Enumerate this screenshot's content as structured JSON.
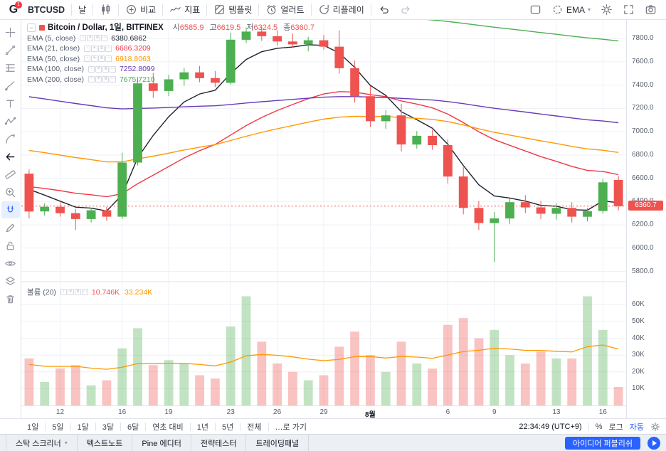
{
  "toolbar": {
    "logo": "G",
    "badge": "1",
    "symbol": "BTCUSD",
    "interval": "날",
    "compare": "비교",
    "indicators": "지표",
    "templates": "템플릿",
    "alerts": "얼러트",
    "replay": "리플레이",
    "ema_selector": "EMA"
  },
  "legend": {
    "title": "Bitcoin / Dollar, 1일, BITFINEX",
    "ohlc": {
      "o_label": "시",
      "o": "6585.9",
      "h_label": "고",
      "h": "6619.5",
      "l_label": "저",
      "l": "6324.5",
      "c_label": "종",
      "c": "6360.7",
      "color": "#ef5350"
    },
    "emas": [
      {
        "label": "EMA (5, close)",
        "value": "6380.6862",
        "color": "#1e222d"
      },
      {
        "label": "EMA (21, close)",
        "value": "6686.3209",
        "color": "#f23645"
      },
      {
        "label": "EMA (50, close)",
        "value": "6918.8063",
        "color": "#ff9800"
      },
      {
        "label": "EMA (100, close)",
        "value": "7252.8099",
        "color": "#673ab7"
      },
      {
        "label": "EMA (200, close)",
        "value": "7675.7210",
        "color": "#4caf50"
      }
    ]
  },
  "volume_legend": {
    "label": "볼륨 (20)",
    "value": "10.746K",
    "value_color": "#ef5350",
    "ma_value": "33.234K",
    "ma_color": "#ff9800"
  },
  "price_tag": {
    "value": "6360.7"
  },
  "chart_data": {
    "type": "candlestick",
    "title": "Bitcoin / Dollar, 1일, BITFINEX",
    "price_axis": {
      "min": 5730,
      "max": 7960,
      "ticks": [
        7800,
        7600,
        7400,
        7200,
        7000,
        6800,
        6600,
        6400,
        6200,
        6000,
        5800
      ]
    },
    "volume_axis": {
      "max": 72,
      "ticks": [
        60,
        50,
        40,
        30,
        20,
        10
      ],
      "unit": "K"
    },
    "x_ticks": [
      {
        "i": 2,
        "label": "12"
      },
      {
        "i": 6,
        "label": "16"
      },
      {
        "i": 9,
        "label": "19"
      },
      {
        "i": 13,
        "label": "23"
      },
      {
        "i": 16,
        "label": "26"
      },
      {
        "i": 19,
        "label": "29"
      },
      {
        "i": 22,
        "label": "8월",
        "major": true
      },
      {
        "i": 27,
        "label": "6"
      },
      {
        "i": 30,
        "label": "9"
      },
      {
        "i": 34,
        "label": "13"
      },
      {
        "i": 37,
        "label": "16"
      }
    ],
    "last_price": 6360.7,
    "colors": {
      "up": "#4caf50",
      "down": "#ef5350",
      "vol_up": "rgba(76,175,80,0.35)",
      "vol_down": "rgba(239,83,80,0.35)",
      "grid": "#eef1f7",
      "last_line": "#ef5350",
      "pane_border": "#e0e3eb"
    },
    "indicators": [
      {
        "name": "EMA 5",
        "period": 5,
        "seed": 6600,
        "color": "#1e222d"
      },
      {
        "name": "EMA 21",
        "period": 21,
        "seed": 6550,
        "color": "#f23645"
      },
      {
        "name": "EMA 50",
        "period": 50,
        "seed": 6860,
        "color": "#ff9800"
      },
      {
        "name": "EMA 100",
        "period": 100,
        "seed": 7320,
        "color": "#673ab7"
      },
      {
        "name": "EMA 200",
        "period": 200,
        "seed": 8200,
        "color": "#4caf50"
      }
    ],
    "volume_ma": {
      "period": 20,
      "seed": 24,
      "color": "#ff9800"
    },
    "candles": [
      [
        6640,
        6675,
        6255,
        6315,
        28
      ],
      [
        6315,
        6385,
        6280,
        6355,
        14
      ],
      [
        6355,
        6395,
        6270,
        6300,
        22
      ],
      [
        6300,
        6335,
        6155,
        6250,
        24
      ],
      [
        6250,
        6345,
        6220,
        6325,
        12
      ],
      [
        6325,
        6355,
        6235,
        6270,
        15
      ],
      [
        6270,
        6820,
        6250,
        6735,
        34
      ],
      [
        6735,
        7470,
        6710,
        7415,
        46
      ],
      [
        7415,
        7505,
        7290,
        7350,
        24
      ],
      [
        7350,
        7490,
        7305,
        7450,
        27
      ],
      [
        7450,
        7550,
        7395,
        7510,
        25
      ],
      [
        7510,
        7565,
        7425,
        7460,
        18
      ],
      [
        7460,
        7520,
        7385,
        7420,
        16
      ],
      [
        7420,
        7850,
        7405,
        7790,
        47
      ],
      [
        7790,
        7895,
        7760,
        7860,
        65
      ],
      [
        7860,
        7900,
        7780,
        7820,
        38
      ],
      [
        7820,
        7870,
        7740,
        7775,
        25
      ],
      [
        7775,
        7845,
        7720,
        7750,
        20
      ],
      [
        7750,
        7815,
        7690,
        7785,
        15
      ],
      [
        7785,
        7830,
        7705,
        7730,
        18
      ],
      [
        7730,
        7870,
        7500,
        7545,
        35
      ],
      [
        7545,
        7610,
        7250,
        7305,
        44
      ],
      [
        7305,
        7395,
        7040,
        7090,
        30
      ],
      [
        7090,
        7185,
        7025,
        7140,
        20
      ],
      [
        7140,
        7240,
        6830,
        6890,
        38
      ],
      [
        6890,
        7005,
        6855,
        6965,
        25
      ],
      [
        6965,
        7015,
        6845,
        6885,
        22
      ],
      [
        6885,
        6935,
        6555,
        6615,
        48
      ],
      [
        6615,
        6695,
        6290,
        6345,
        52
      ],
      [
        6345,
        6405,
        6155,
        6215,
        40
      ],
      [
        6215,
        6310,
        5880,
        6255,
        45
      ],
      [
        6255,
        6425,
        6205,
        6395,
        30
      ],
      [
        6395,
        6455,
        6300,
        6350,
        25
      ],
      [
        6350,
        6405,
        6250,
        6295,
        32
      ],
      [
        6295,
        6385,
        6245,
        6345,
        28
      ],
      [
        6345,
        6395,
        6220,
        6270,
        28
      ],
      [
        6270,
        6345,
        6230,
        6318,
        65
      ],
      [
        6318,
        6595,
        6295,
        6565,
        45
      ],
      [
        6585.9,
        6619.5,
        6324.5,
        6360.7,
        11
      ]
    ]
  },
  "range_toolbar": {
    "items": [
      "1일",
      "5일",
      "1달",
      "3달",
      "6달",
      "연초 대비",
      "1년",
      "5년",
      "전체"
    ],
    "goto": "…로 가기",
    "clock": "22:34:49 (UTC+9)",
    "percent": "%",
    "log": "로그",
    "auto": "자동"
  },
  "bottom_tabs": {
    "tabs": [
      "스탁 스크리너",
      "텍스트노트",
      "Pine 에디터",
      "전략테스터",
      "트레이딩패널"
    ],
    "publish": "아이디어 퍼블리쉬"
  }
}
